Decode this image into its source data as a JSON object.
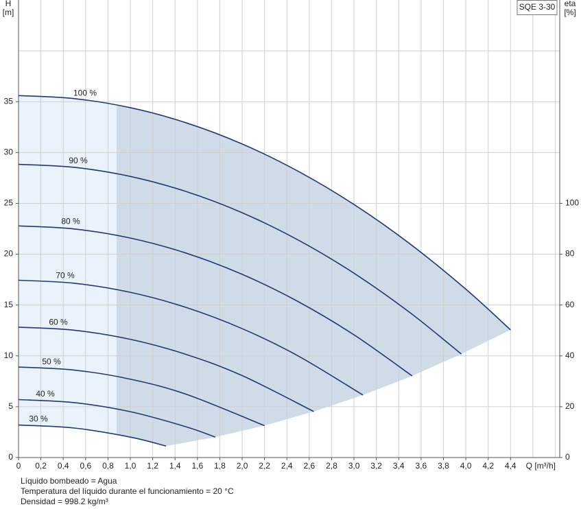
{
  "chart_data": {
    "type": "line",
    "title": "SQE 3-30",
    "y_label": "H",
    "y_unit": "[m]",
    "y2_label": "eta",
    "y2_unit": "[%]",
    "x_label": "Q [m³/h]",
    "xlim": [
      0,
      4.84
    ],
    "xticks": [
      0,
      {
        "value": 0.2,
        "label": "0,2"
      },
      {
        "value": 0.4,
        "label": "0,4"
      },
      {
        "value": 0.6,
        "label": "0,6"
      },
      {
        "value": 0.8,
        "label": "0,8"
      },
      {
        "value": 1.0,
        "label": "1,0"
      },
      {
        "value": 1.2,
        "label": "1,2"
      },
      {
        "value": 1.4,
        "label": "1,4"
      },
      {
        "value": 1.6,
        "label": "1,6"
      },
      {
        "value": 1.8,
        "label": "1,8"
      },
      {
        "value": 2.0,
        "label": "2,0"
      },
      {
        "value": 2.2,
        "label": "2,2"
      },
      {
        "value": 2.4,
        "label": "2,4"
      },
      {
        "value": 2.6,
        "label": "2,6"
      },
      {
        "value": 2.8,
        "label": "2,8"
      },
      {
        "value": 3.0,
        "label": "3,0"
      },
      {
        "value": 3.2,
        "label": "3,2"
      },
      {
        "value": 3.4,
        "label": "3,4"
      },
      {
        "value": 3.6,
        "label": "3,6"
      },
      {
        "value": 3.8,
        "label": "3,8"
      },
      {
        "value": 4.0,
        "label": "4,0"
      },
      {
        "value": 4.2,
        "label": "4,2"
      },
      {
        "value": 4.4,
        "label": "4,4"
      }
    ],
    "xgrid": [
      4.6,
      4.8
    ],
    "ylim": [
      0,
      45
    ],
    "yticks": [
      0,
      5,
      10,
      15,
      20,
      25,
      30,
      35
    ],
    "ygrid": [
      40
    ],
    "y2lim": [
      0,
      180
    ],
    "y2ticks": [
      0,
      20,
      40,
      60,
      80,
      100
    ],
    "grid": true,
    "series": [
      {
        "name": "100 %",
        "color": "#1c3a78",
        "x": [
          0,
          0.5,
          1.0,
          1.5,
          2.0,
          2.5,
          3.0,
          3.5,
          4.0,
          4.4
        ],
        "values": [
          35.6,
          35.3,
          34.41,
          32.92,
          30.84,
          28.16,
          24.89,
          21.02,
          16.56,
          12.56
        ]
      },
      {
        "name": "90 %",
        "color": "#1c3a78",
        "x": [
          0,
          0.5,
          1.0,
          1.5,
          2.0,
          2.5,
          3.0,
          3.5,
          3.96
        ],
        "values": [
          28.84,
          28.54,
          27.65,
          26.16,
          24.08,
          21.4,
          18.13,
          14.26,
          10.18
        ]
      },
      {
        "name": "80 %",
        "color": "#1c3a78",
        "x": [
          0,
          0.5,
          1.0,
          1.5,
          2.0,
          2.5,
          3.0,
          3.52
        ],
        "values": [
          22.78,
          22.48,
          21.59,
          20.1,
          18.02,
          15.34,
          12.07,
          8.03
        ]
      },
      {
        "name": "70 %",
        "color": "#1c3a78",
        "x": [
          0,
          0.5,
          1.0,
          1.5,
          2.0,
          2.5,
          3.08
        ],
        "values": [
          17.44,
          17.14,
          16.25,
          14.76,
          12.68,
          10.0,
          6.15
        ]
      },
      {
        "name": "60 %",
        "color": "#1c3a78",
        "x": [
          0,
          0.5,
          1.0,
          1.5,
          2.0,
          2.64
        ],
        "values": [
          12.82,
          12.52,
          11.63,
          10.14,
          8.06,
          4.53
        ]
      },
      {
        "name": "50 %",
        "color": "#1c3a78",
        "x": [
          0,
          0.5,
          1.0,
          1.5,
          2.2
        ],
        "values": [
          8.9,
          8.6,
          7.71,
          6.22,
          3.14
        ]
      },
      {
        "name": "40 %",
        "color": "#1c3a78",
        "x": [
          0,
          0.5,
          1.0,
          1.5,
          1.76
        ],
        "values": [
          5.7,
          5.4,
          4.51,
          3.02,
          2.01
        ]
      },
      {
        "name": "30 %",
        "color": "#1c3a78",
        "x": [
          0,
          0.5,
          1.0,
          1.32
        ],
        "values": [
          3.2,
          2.9,
          2.01,
          1.13
        ]
      }
    ],
    "notes": [
      "Líquido bombeado = Agua",
      "Temperatura del líquido durante el funcionamiento = 20 °C",
      "Densidad = 998.2 kg/m³"
    ]
  }
}
